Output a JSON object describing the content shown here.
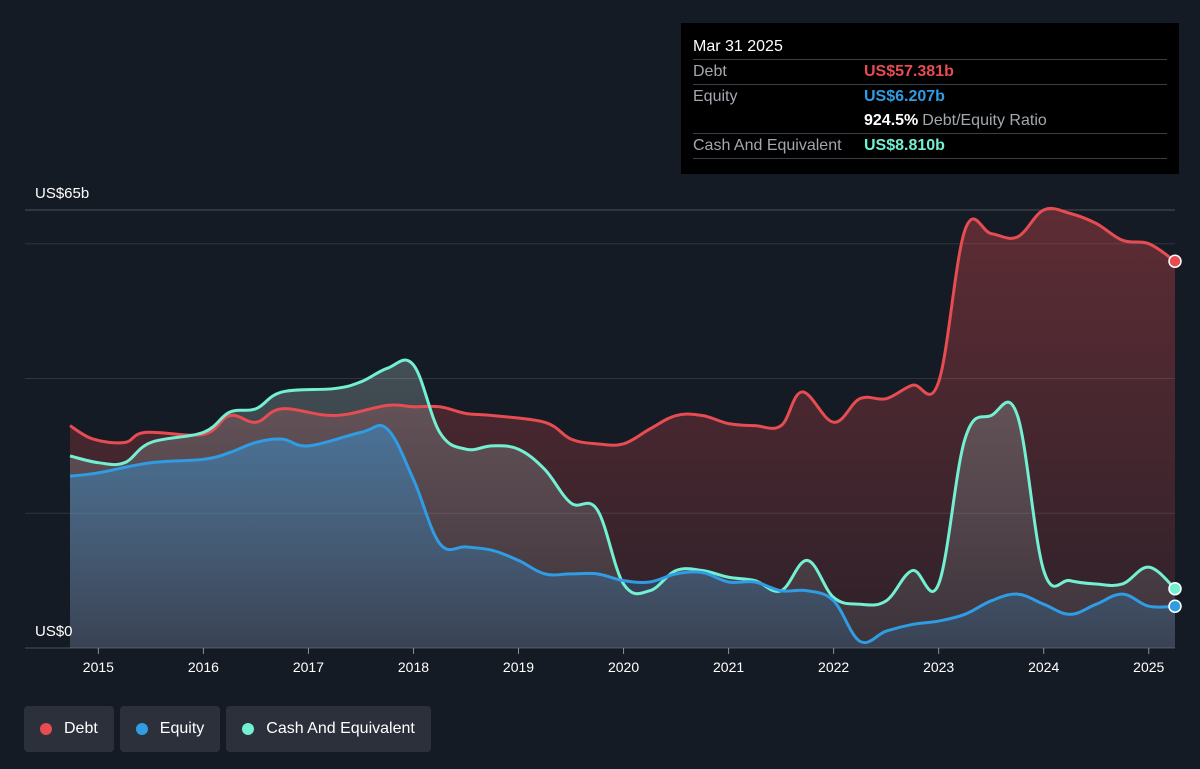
{
  "tooltip": {
    "date": "Mar 31 2025",
    "debt_label": "Debt",
    "debt_value": "US$57.381b",
    "equity_label": "Equity",
    "equity_value": "US$6.207b",
    "ratio_value": "924.5%",
    "ratio_label": "Debt/Equity Ratio",
    "cash_label": "Cash And Equivalent",
    "cash_value": "US$8.810b"
  },
  "legend": [
    {
      "label": "Debt",
      "color": "#e64c52"
    },
    {
      "label": "Equity",
      "color": "#2f9ce4"
    },
    {
      "label": "Cash And Equivalent",
      "color": "#73f0d1"
    }
  ],
  "colors": {
    "debt": "#e64c52",
    "equity": "#2f9ce4",
    "cash": "#73f0d1",
    "background": "#151b24"
  },
  "chart_data": {
    "type": "area",
    "ylabel_top": "US$65b",
    "ylabel_bottom": "US$0",
    "ylim": [
      0,
      65
    ],
    "xlim": [
      2014.73,
      2025.25
    ],
    "x_ticks": [
      "2015",
      "2016",
      "2017",
      "2018",
      "2019",
      "2020",
      "2021",
      "2022",
      "2023",
      "2024",
      "2025"
    ],
    "grid": true,
    "series": [
      {
        "name": "Debt",
        "points": [
          [
            2014.73,
            33.0
          ],
          [
            2014.95,
            31.0
          ],
          [
            2015.25,
            30.5
          ],
          [
            2015.45,
            32.0
          ],
          [
            2016.0,
            31.7
          ],
          [
            2016.25,
            34.5
          ],
          [
            2016.5,
            33.5
          ],
          [
            2016.75,
            35.5
          ],
          [
            2017.25,
            34.5
          ],
          [
            2017.75,
            36.0
          ],
          [
            2018.0,
            35.8
          ],
          [
            2018.25,
            35.8
          ],
          [
            2018.5,
            34.8
          ],
          [
            2018.75,
            34.5
          ],
          [
            2019.25,
            33.5
          ],
          [
            2019.5,
            31.0
          ],
          [
            2019.75,
            30.3
          ],
          [
            2020.0,
            30.3
          ],
          [
            2020.25,
            32.5
          ],
          [
            2020.5,
            34.5
          ],
          [
            2020.75,
            34.5
          ],
          [
            2021.0,
            33.3
          ],
          [
            2021.25,
            33.0
          ],
          [
            2021.5,
            33.0
          ],
          [
            2021.7,
            38.0
          ],
          [
            2022.0,
            33.5
          ],
          [
            2022.25,
            37.0
          ],
          [
            2022.5,
            37.0
          ],
          [
            2022.75,
            39.0
          ],
          [
            2023.0,
            39.5
          ],
          [
            2023.25,
            62.0
          ],
          [
            2023.5,
            61.5
          ],
          [
            2023.75,
            61.0
          ],
          [
            2024.0,
            65.0
          ],
          [
            2024.25,
            64.5
          ],
          [
            2024.5,
            63.0
          ],
          [
            2024.75,
            60.5
          ],
          [
            2025.0,
            60.0
          ],
          [
            2025.25,
            57.4
          ]
        ]
      },
      {
        "name": "Equity",
        "points": [
          [
            2014.73,
            25.5
          ],
          [
            2015.0,
            26.0
          ],
          [
            2015.5,
            27.5
          ],
          [
            2016.0,
            28.0
          ],
          [
            2016.25,
            29.0
          ],
          [
            2016.5,
            30.5
          ],
          [
            2016.75,
            31.0
          ],
          [
            2017.0,
            30.0
          ],
          [
            2017.5,
            32.0
          ],
          [
            2017.75,
            32.5
          ],
          [
            2018.0,
            25.0
          ],
          [
            2018.25,
            15.5
          ],
          [
            2018.5,
            15.0
          ],
          [
            2018.75,
            14.5
          ],
          [
            2019.0,
            13.0
          ],
          [
            2019.25,
            11.0
          ],
          [
            2019.5,
            11.0
          ],
          [
            2019.75,
            11.0
          ],
          [
            2020.0,
            10.0
          ],
          [
            2020.25,
            9.8
          ],
          [
            2020.5,
            11.0
          ],
          [
            2020.75,
            11.2
          ],
          [
            2021.0,
            9.8
          ],
          [
            2021.25,
            9.8
          ],
          [
            2021.5,
            8.5
          ],
          [
            2021.75,
            8.5
          ],
          [
            2022.0,
            7.0
          ],
          [
            2022.25,
            1.0
          ],
          [
            2022.5,
            2.5
          ],
          [
            2022.75,
            3.5
          ],
          [
            2023.0,
            4.0
          ],
          [
            2023.25,
            5.0
          ],
          [
            2023.5,
            7.0
          ],
          [
            2023.75,
            8.0
          ],
          [
            2024.0,
            6.5
          ],
          [
            2024.25,
            5.0
          ],
          [
            2024.5,
            6.5
          ],
          [
            2024.75,
            8.0
          ],
          [
            2025.0,
            6.2
          ],
          [
            2025.25,
            6.2
          ]
        ]
      },
      {
        "name": "Cash And Equivalent",
        "points": [
          [
            2014.73,
            28.5
          ],
          [
            2015.0,
            27.5
          ],
          [
            2015.25,
            27.5
          ],
          [
            2015.5,
            30.5
          ],
          [
            2016.0,
            32.0
          ],
          [
            2016.25,
            35.0
          ],
          [
            2016.5,
            35.5
          ],
          [
            2016.75,
            38.0
          ],
          [
            2017.25,
            38.5
          ],
          [
            2017.5,
            39.5
          ],
          [
            2017.75,
            41.5
          ],
          [
            2018.0,
            42.0
          ],
          [
            2018.25,
            32.0
          ],
          [
            2018.5,
            29.5
          ],
          [
            2018.75,
            30.0
          ],
          [
            2019.0,
            29.5
          ],
          [
            2019.25,
            26.5
          ],
          [
            2019.5,
            21.5
          ],
          [
            2019.75,
            20.5
          ],
          [
            2020.0,
            9.5
          ],
          [
            2020.25,
            8.5
          ],
          [
            2020.5,
            11.5
          ],
          [
            2020.75,
            11.5
          ],
          [
            2021.0,
            10.5
          ],
          [
            2021.25,
            10.0
          ],
          [
            2021.5,
            8.5
          ],
          [
            2021.75,
            13.0
          ],
          [
            2022.0,
            7.5
          ],
          [
            2022.25,
            6.5
          ],
          [
            2022.5,
            7.0
          ],
          [
            2022.75,
            11.5
          ],
          [
            2023.0,
            9.5
          ],
          [
            2023.25,
            31.0
          ],
          [
            2023.5,
            34.5
          ],
          [
            2023.75,
            34.5
          ],
          [
            2024.0,
            11.5
          ],
          [
            2024.25,
            10.0
          ],
          [
            2024.5,
            9.5
          ],
          [
            2024.75,
            9.5
          ],
          [
            2025.0,
            12.0
          ],
          [
            2025.25,
            8.8
          ]
        ]
      }
    ]
  }
}
